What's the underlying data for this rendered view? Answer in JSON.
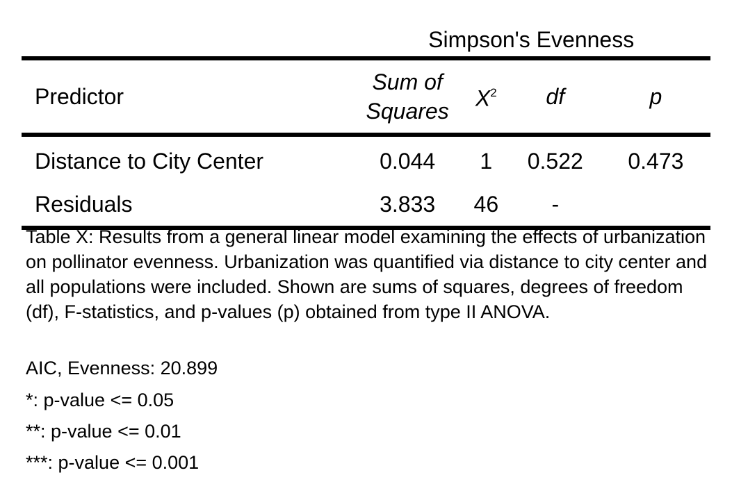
{
  "table": {
    "group_header": "Simpson's Evenness",
    "columns": {
      "predictor": "Predictor",
      "sum_of_squares_line1": "Sum of",
      "sum_of_squares_line2": "Squares",
      "chi_symbol": "X",
      "chi_superscript": "2",
      "df": "df",
      "p": "p"
    },
    "rows": [
      {
        "predictor": "Distance to City Center",
        "sum_of_squares": "0.044",
        "chi_squared": "1",
        "df": "0.522",
        "p": "0.473"
      },
      {
        "predictor": "Residuals",
        "sum_of_squares": "3.833",
        "chi_squared": "46",
        "df": "-",
        "p": ""
      }
    ]
  },
  "caption": "Table X: Results from a general linear model examining the effects of urbanization on pollinator evenness. Urbanization was quantified via distance to city center and all populations were included. Shown are sums of squares, degrees of freedom (df), F-statistics, and p-values (p) obtained from type II ANOVA.",
  "notes": {
    "aic": "AIC, Evenness: 20.899",
    "sig_1": "*: p-value <= 0.05",
    "sig_2": "**: p-value <= 0.01",
    "sig_3": "***: p-value <= 0.001"
  }
}
